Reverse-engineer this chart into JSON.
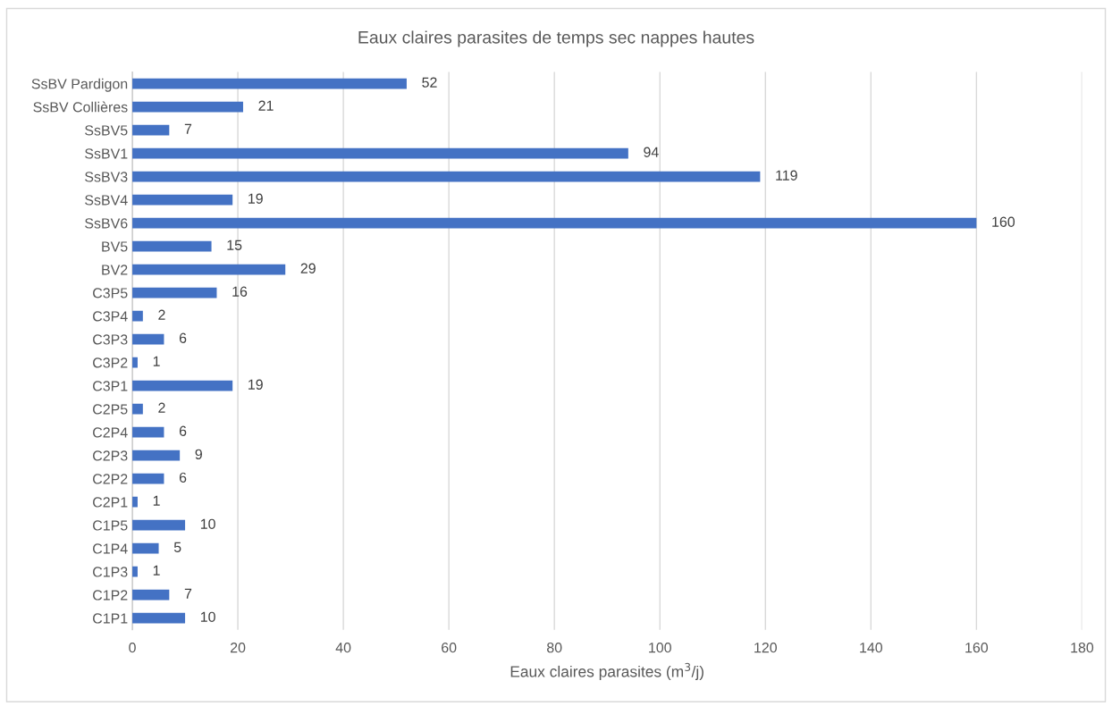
{
  "chart_data": {
    "type": "bar",
    "orientation": "horizontal",
    "title": "Eaux claires parasites de temps sec nappes hautes",
    "xlabel": "Eaux claires parasites (m$^{3}$/j)",
    "categories": [
      "SsBV Pardigon",
      "SsBV Collières",
      "SsBV5",
      "SsBV1",
      "SsBV3",
      "SsBV4",
      "SsBV6",
      "BV5",
      "BV2",
      "C3P5",
      "C3P4",
      "C3P3",
      "C3P2",
      "C3P1",
      "C2P5",
      "C2P4",
      "C2P3",
      "C2P2",
      "C2P1",
      "C1P5",
      "C1P4",
      "C1P3",
      "C1P2",
      "C1P1"
    ],
    "values": [
      52,
      21,
      7,
      94,
      119,
      19,
      160,
      15,
      29,
      16,
      2,
      6,
      1,
      19,
      2,
      6,
      9,
      6,
      1,
      10,
      5,
      1,
      7,
      10
    ],
    "color": "#4472c4",
    "xlim": [
      0,
      180
    ],
    "xticks": [
      0,
      20,
      40,
      60,
      80,
      100,
      120,
      140,
      160,
      180
    ],
    "grid": "x",
    "data_labels": true
  }
}
